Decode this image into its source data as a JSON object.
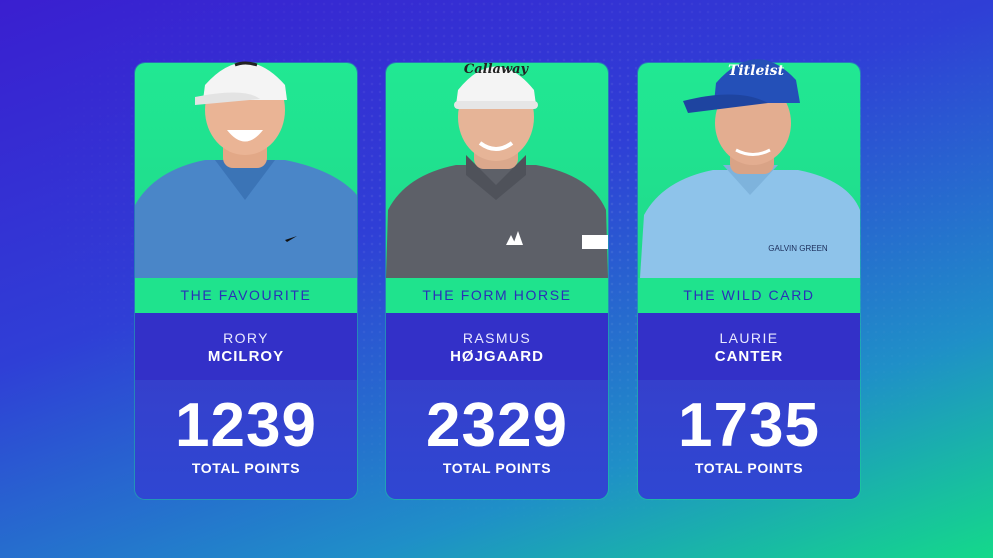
{
  "cards": [
    {
      "role": "THE FAVOURITE",
      "first_name": "RORY",
      "last_name": "MCILROY",
      "points": "1239",
      "points_label": "TOTAL POINTS",
      "shirt_color": "#4a86c8",
      "cap_color": "#f2f2f2",
      "cap_logo": "",
      "shirt_text": ""
    },
    {
      "role": "THE FORM HORSE",
      "first_name": "RASMUS",
      "last_name": "HØJGAARD",
      "points": "2329",
      "points_label": "TOTAL POINTS",
      "shirt_color": "#5d6068",
      "cap_color": "#f2f2f2",
      "cap_logo": "Callaway",
      "shirt_text": ""
    },
    {
      "role": "THE WILD CARD",
      "first_name": "LAURIE",
      "last_name": "CANTER",
      "points": "1735",
      "points_label": "TOTAL POINTS",
      "shirt_color": "#8ec3ea",
      "cap_color": "#2450b8",
      "cap_logo": "Titleist",
      "shirt_text": "GALVIN GREEN"
    }
  ],
  "colors": {
    "role_band": "#1fe38d",
    "name_band": "#3330c8",
    "points_band": "#3540cc",
    "role_text": "#2a2fb8"
  }
}
